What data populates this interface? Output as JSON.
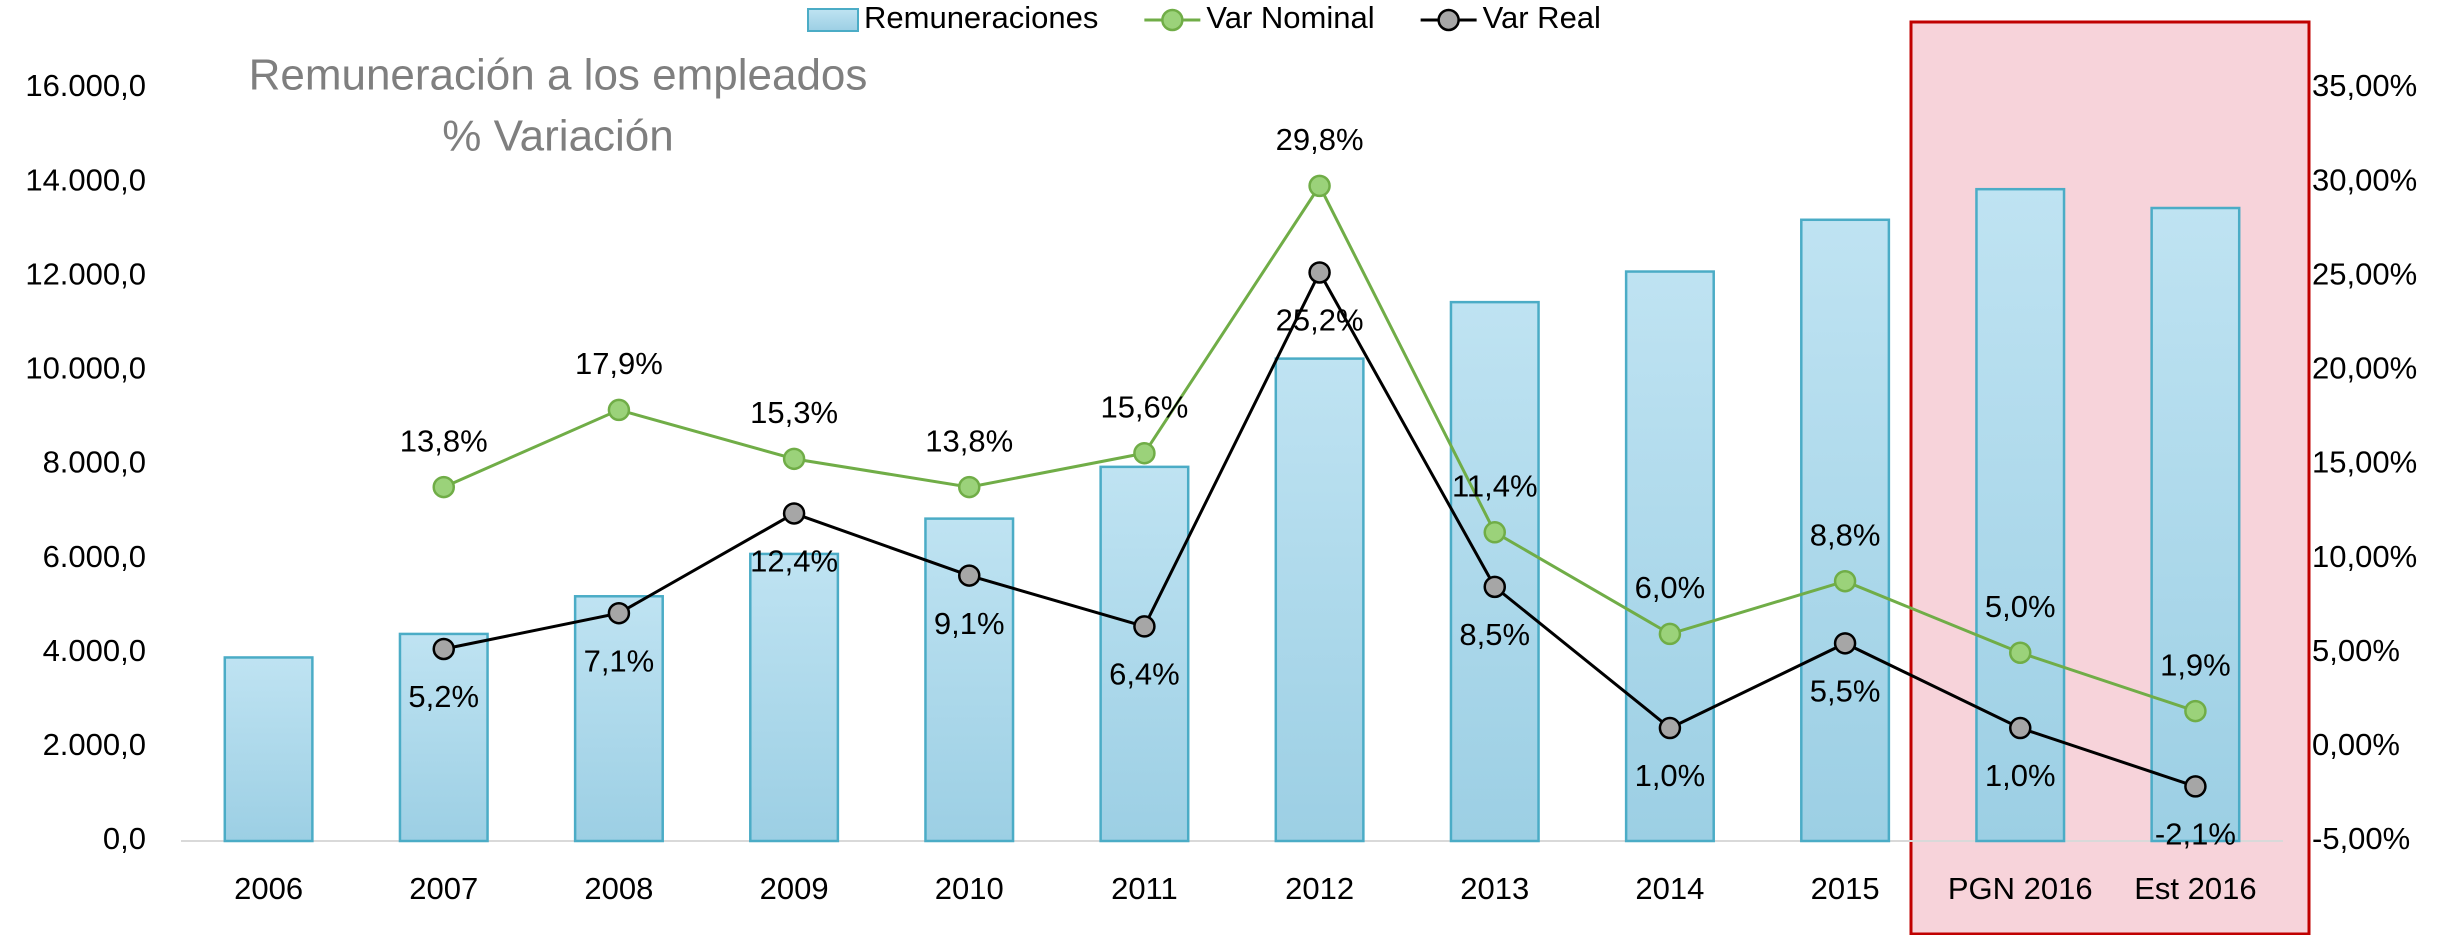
{
  "chart_data": {
    "type": "bar_line",
    "title": "Remuneración a los empleados",
    "subtitle": "% Variación",
    "categories": [
      "2006",
      "2007",
      "2008",
      "2009",
      "2010",
      "2011",
      "2012",
      "2013",
      "2014",
      "2015",
      "PGN 2016",
      "Est 2016"
    ],
    "series": [
      {
        "name": "Remuneraciones",
        "type": "bar",
        "color": "#a9d8ec",
        "stroke": "#4bacc6",
        "values": [
          3900,
          4400,
          5200,
          6100,
          6850,
          7950,
          10250,
          11450,
          12100,
          13200,
          13850,
          13450
        ]
      },
      {
        "name": "Var Nominal",
        "type": "line",
        "axis": "y2",
        "color": "#70ad47",
        "marker_color": "#9bd27a",
        "values": [
          null,
          13.8,
          17.9,
          15.3,
          13.8,
          15.6,
          29.8,
          11.4,
          6.0,
          8.8,
          5.0,
          1.9
        ],
        "value_labels": [
          null,
          "13,8%",
          "17,9%",
          "15,3%",
          "13,8%",
          "15,6%",
          "29,8%",
          "11,4%",
          "6,0%",
          "8,8%",
          "5,0%",
          "1,9%"
        ]
      },
      {
        "name": "Var Real",
        "type": "line",
        "axis": "y2",
        "color": "#000000",
        "marker_color": "#a6a6a6",
        "values": [
          null,
          5.2,
          7.1,
          12.4,
          9.1,
          6.4,
          25.2,
          8.5,
          1.0,
          5.5,
          1.0,
          -2.1
        ],
        "value_labels": [
          null,
          "5,2%",
          "7,1%",
          "12,4%",
          "9,1%",
          "6,4%",
          "25,2%",
          "8,5%",
          "1,0%",
          "5,5%",
          "1,0%",
          "-2,1%"
        ]
      }
    ],
    "ylim": [
      0,
      16000
    ],
    "yticks": [
      {
        "value": 0,
        "label": "0,0"
      },
      {
        "value": 2000,
        "label": "2.000,0"
      },
      {
        "value": 4000,
        "label": "4.000,0"
      },
      {
        "value": 6000,
        "label": "6.000,0"
      },
      {
        "value": 8000,
        "label": "8.000,0"
      },
      {
        "value": 10000,
        "label": "10.000,0"
      },
      {
        "value": 12000,
        "label": "12.000,0"
      },
      {
        "value": 14000,
        "label": "14.000,0"
      },
      {
        "value": 16000,
        "label": "16.000,0"
      }
    ],
    "y2lim": [
      -5,
      35
    ],
    "y2ticks": [
      {
        "value": -5,
        "label": "-5,00%"
      },
      {
        "value": 0,
        "label": "0,00%"
      },
      {
        "value": 5,
        "label": "5,00%"
      },
      {
        "value": 10,
        "label": "10,00%"
      },
      {
        "value": 15,
        "label": "15,00%"
      },
      {
        "value": 20,
        "label": "20,00%"
      },
      {
        "value": 25,
        "label": "25,00%"
      },
      {
        "value": 30,
        "label": "30,00%"
      },
      {
        "value": 35,
        "label": "35,00%"
      }
    ],
    "grid": false,
    "legend": "top"
  }
}
